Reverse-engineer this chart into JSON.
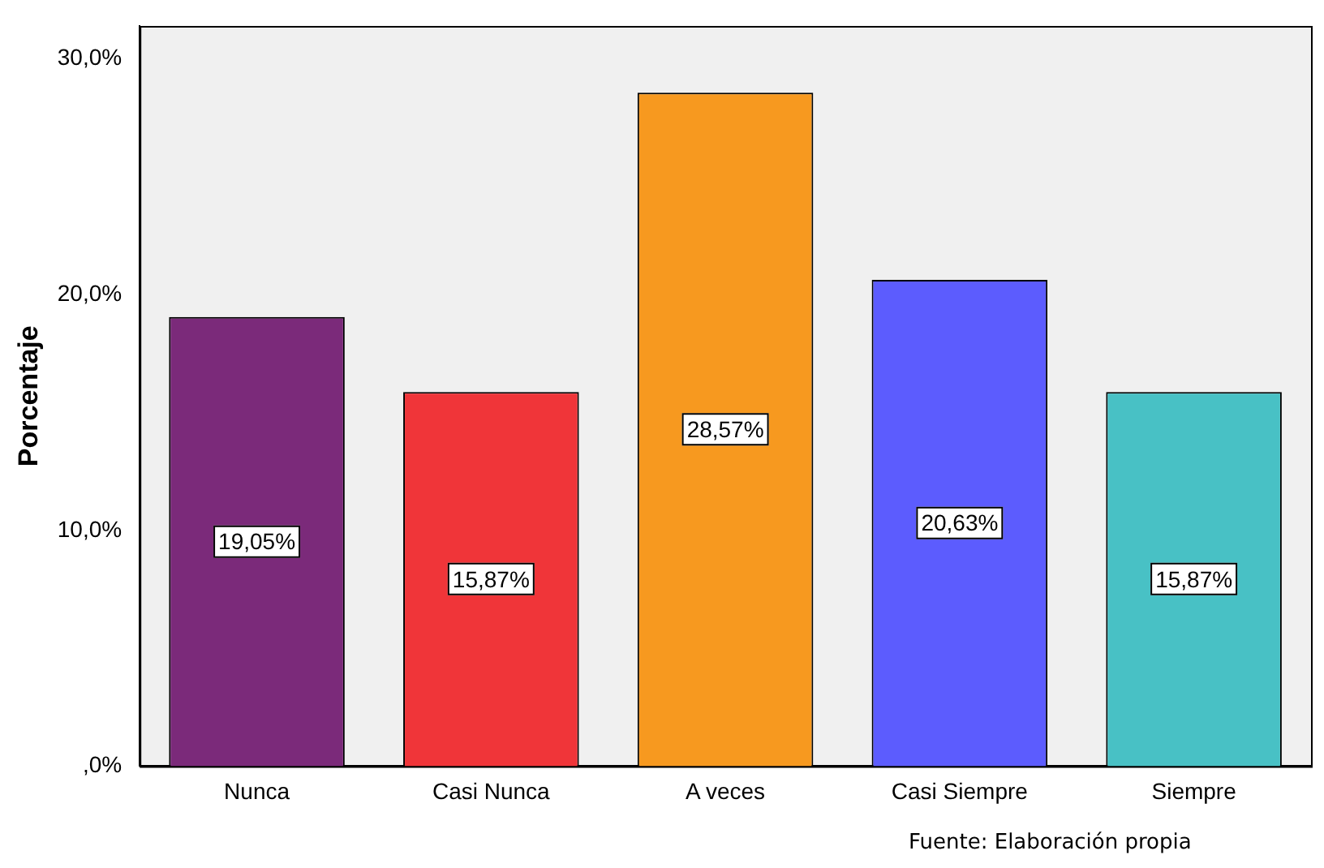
{
  "chart_data": {
    "type": "bar",
    "ylabel": "Porcentaje",
    "categories": [
      "Nunca",
      "Casi Nunca",
      "A veces",
      "Casi Siempre",
      "Siempre"
    ],
    "values": [
      19.05,
      15.87,
      28.57,
      20.63,
      15.87
    ],
    "colors": [
      "#7b2a7a",
      "#f03539",
      "#f7991f",
      "#5c5cfe",
      "#48c1c5"
    ],
    "value_labels": [
      "19,05%",
      "15,87%",
      "28,57%",
      "20,63%",
      "15,87%"
    ],
    "ylim": [
      0,
      31.4
    ],
    "yticks": [
      {
        "value": 0,
        "label": ",0%"
      },
      {
        "value": 10,
        "label": "10,0%"
      },
      {
        "value": 20,
        "label": "20,0%"
      },
      {
        "value": 30,
        "label": "30,0%"
      }
    ],
    "grid": false,
    "legend": false,
    "annotations": [
      "Fuente: Elaboración propia"
    ]
  }
}
